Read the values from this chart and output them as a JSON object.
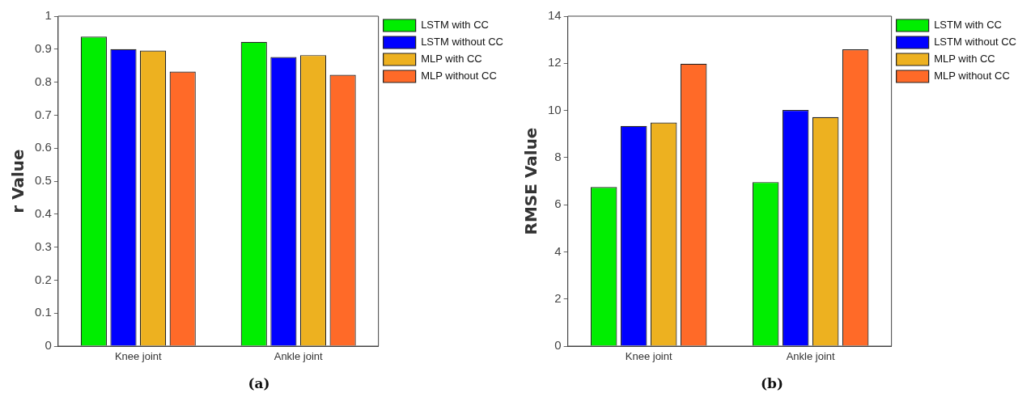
{
  "chart_data": [
    {
      "type": "bar",
      "title": "(a)",
      "ylabel": "r Value",
      "categories": [
        "Knee joint",
        "Ankle joint"
      ],
      "ylim": [
        0,
        1
      ],
      "yticks": [
        0,
        0.1,
        0.2,
        0.3,
        0.4,
        0.5,
        0.6,
        0.7,
        0.8,
        0.9,
        1
      ],
      "grid": false,
      "legend": "top right",
      "series": [
        {
          "name": "LSTM with CC",
          "color": "#00ee00",
          "values": [
            0.938,
            0.922
          ]
        },
        {
          "name": "LSTM without CC",
          "color": "#0000ff",
          "values": [
            0.9,
            0.876
          ]
        },
        {
          "name": "MLP with CC",
          "color": "#edb120",
          "values": [
            0.896,
            0.882
          ]
        },
        {
          "name": "MLP without CC",
          "color": "#ff6a28",
          "values": [
            0.832,
            0.822
          ]
        }
      ]
    },
    {
      "type": "bar",
      "title": "(b)",
      "ylabel": "RMSE Value",
      "categories": [
        "Knee joint",
        "Ankle joint"
      ],
      "ylim": [
        0,
        14
      ],
      "yticks": [
        0,
        2,
        4,
        6,
        8,
        10,
        12,
        14
      ],
      "grid": false,
      "legend": "top right",
      "series": [
        {
          "name": "LSTM with CC",
          "color": "#00ee00",
          "values": [
            6.75,
            6.96
          ]
        },
        {
          "name": "LSTM without CC",
          "color": "#0000ff",
          "values": [
            9.34,
            10.02
          ]
        },
        {
          "name": "MLP with CC",
          "color": "#edb120",
          "values": [
            9.49,
            9.72
          ]
        },
        {
          "name": "MLP without CC",
          "color": "#ff6a28",
          "values": [
            11.98,
            12.59
          ]
        }
      ]
    }
  ]
}
